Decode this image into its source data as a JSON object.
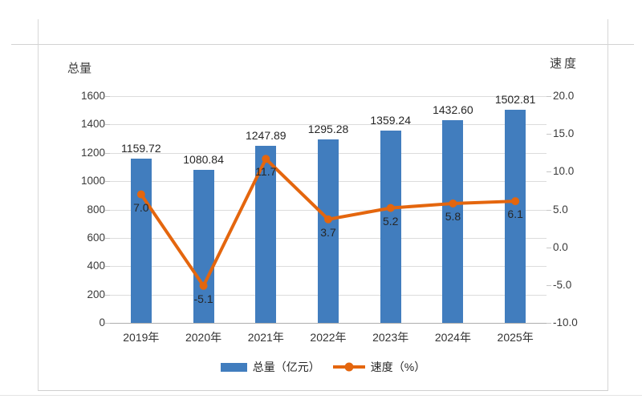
{
  "chart_data": {
    "type": "combo",
    "categories": [
      "2019年",
      "2020年",
      "2021年",
      "2022年",
      "2023年",
      "2024年",
      "2025年"
    ],
    "series": [
      {
        "name": "总量（亿元）",
        "type": "bar",
        "axis": "left",
        "color": "#417DBE",
        "values": [
          1159.72,
          1080.84,
          1247.89,
          1295.28,
          1359.24,
          1432.6,
          1502.81
        ],
        "labels": [
          "1159.72",
          "1080.84",
          "1247.89",
          "1295.28",
          "1359.24",
          "1432.60",
          "1502.81"
        ]
      },
      {
        "name": "速度（%）",
        "type": "line",
        "axis": "right",
        "color": "#E4660E",
        "values": [
          7.0,
          -5.1,
          11.7,
          3.7,
          5.2,
          5.8,
          6.1
        ],
        "labels": [
          "7.0",
          "-5.1",
          "11.7",
          "3.7",
          "5.2",
          "5.8",
          "6.1"
        ]
      }
    ],
    "left_axis": {
      "title": "总量",
      "min": 0,
      "max": 1600,
      "step": 200,
      "ticks": [
        "1600",
        "1400",
        "1200",
        "1000",
        "800",
        "600",
        "400",
        "200",
        "0"
      ]
    },
    "right_axis": {
      "title": "速度",
      "min": -10,
      "max": 20,
      "step": 5,
      "ticks": [
        "20.0",
        "15.0",
        "10.0",
        "5.0",
        "0.0",
        "-5.0",
        "-10.0"
      ]
    },
    "legend_position": "bottom",
    "grid": true,
    "colors": {
      "gridline": "#dcdcdc",
      "axis_line": "#aeaeae",
      "text": "#303030"
    }
  }
}
